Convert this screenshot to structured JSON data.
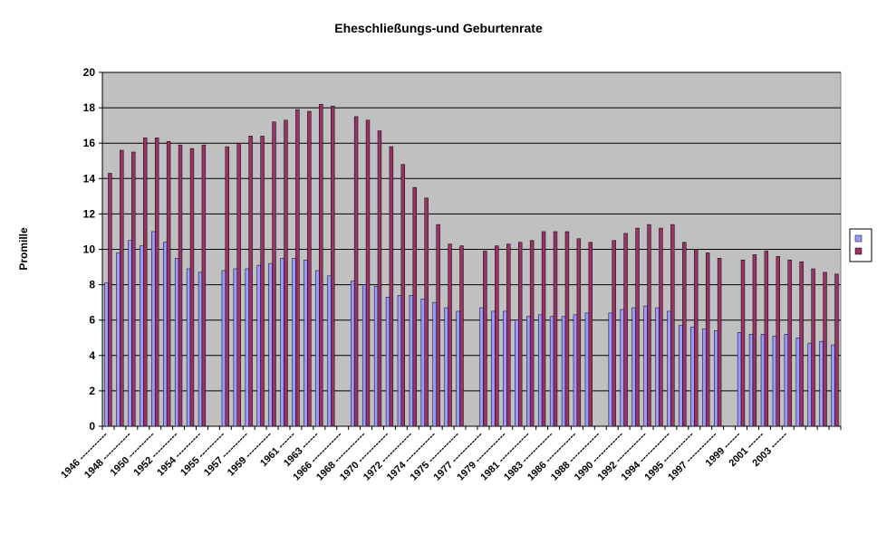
{
  "chart_data": {
    "type": "bar",
    "title": "Eheschließungs-und Geburtenrate",
    "y_label": "Promille",
    "categories": [
      "1946 -----------",
      null,
      "1948 -----------",
      null,
      "1950 ----------",
      null,
      "1952 ----------",
      null,
      "1954 ----------",
      null,
      "1955 ----------",
      null,
      "1957 ----------",
      null,
      "1959 ----------",
      null,
      "1961 ------",
      null,
      "1963 ------",
      null,
      "1966 ------------",
      null,
      "1968 ------------",
      null,
      "1970 ------------",
      null,
      "1972 ------------",
      null,
      "1974 ------------",
      null,
      "1975 ------------",
      null,
      "1977 ------------",
      null,
      "1979 ------------",
      null,
      "1981 ------------",
      null,
      "1983 ------------",
      null,
      "1986 ------------",
      null,
      "1988 ------------",
      null,
      "1990 ------------",
      null,
      "1992 ------------",
      null,
      "1994 ------------",
      null,
      "1995 ------------",
      null,
      "1997 ------------",
      null,
      "1999 ------",
      null,
      "2001 ------",
      null,
      "2003 ------",
      null,
      null,
      null,
      null
    ],
    "series": [
      {
        "color": "#9999ff",
        "values": [
          8.1,
          9.8,
          10.5,
          10.2,
          11.0,
          10.4,
          9.5,
          8.9,
          8.7,
          null,
          8.8,
          8.9,
          8.9,
          9.1,
          9.2,
          9.5,
          9.5,
          9.4,
          8.8,
          8.5,
          null,
          8.2,
          8.0,
          7.9,
          7.3,
          7.4,
          7.4,
          7.2,
          7.0,
          6.7,
          6.5,
          null,
          6.7,
          6.5,
          6.5,
          6.0,
          6.2,
          6.3,
          6.2,
          6.2,
          6.3,
          6.4,
          null,
          6.4,
          6.6,
          6.7,
          6.8,
          6.7,
          6.5,
          5.7,
          5.6,
          5.5,
          5.4,
          null,
          5.3,
          5.2,
          5.2,
          5.1,
          5.2,
          5.0,
          4.7,
          4.8,
          4.6
        ]
      },
      {
        "color": "#993366",
        "values": [
          14.3,
          15.6,
          15.5,
          16.3,
          16.3,
          16.1,
          15.9,
          15.7,
          15.9,
          null,
          15.8,
          16.0,
          16.4,
          16.4,
          17.2,
          17.3,
          17.9,
          17.8,
          18.2,
          18.1,
          null,
          17.5,
          17.3,
          16.7,
          15.8,
          14.8,
          13.5,
          12.9,
          11.4,
          10.3,
          10.2,
          null,
          9.9,
          10.2,
          10.3,
          10.4,
          10.5,
          11.0,
          11.0,
          11.0,
          10.6,
          10.4,
          null,
          10.5,
          10.9,
          11.2,
          11.4,
          11.2,
          11.4,
          10.4,
          10.0,
          9.8,
          9.5,
          null,
          9.4,
          9.7,
          9.9,
          9.6,
          9.4,
          9.3,
          8.9,
          8.7,
          8.6
        ]
      }
    ],
    "ylim": [
      0,
      20
    ],
    "yticks": [
      0,
      2,
      4,
      6,
      8,
      10,
      12,
      14,
      16,
      18,
      20
    ],
    "grid": true,
    "legend": "right"
  }
}
